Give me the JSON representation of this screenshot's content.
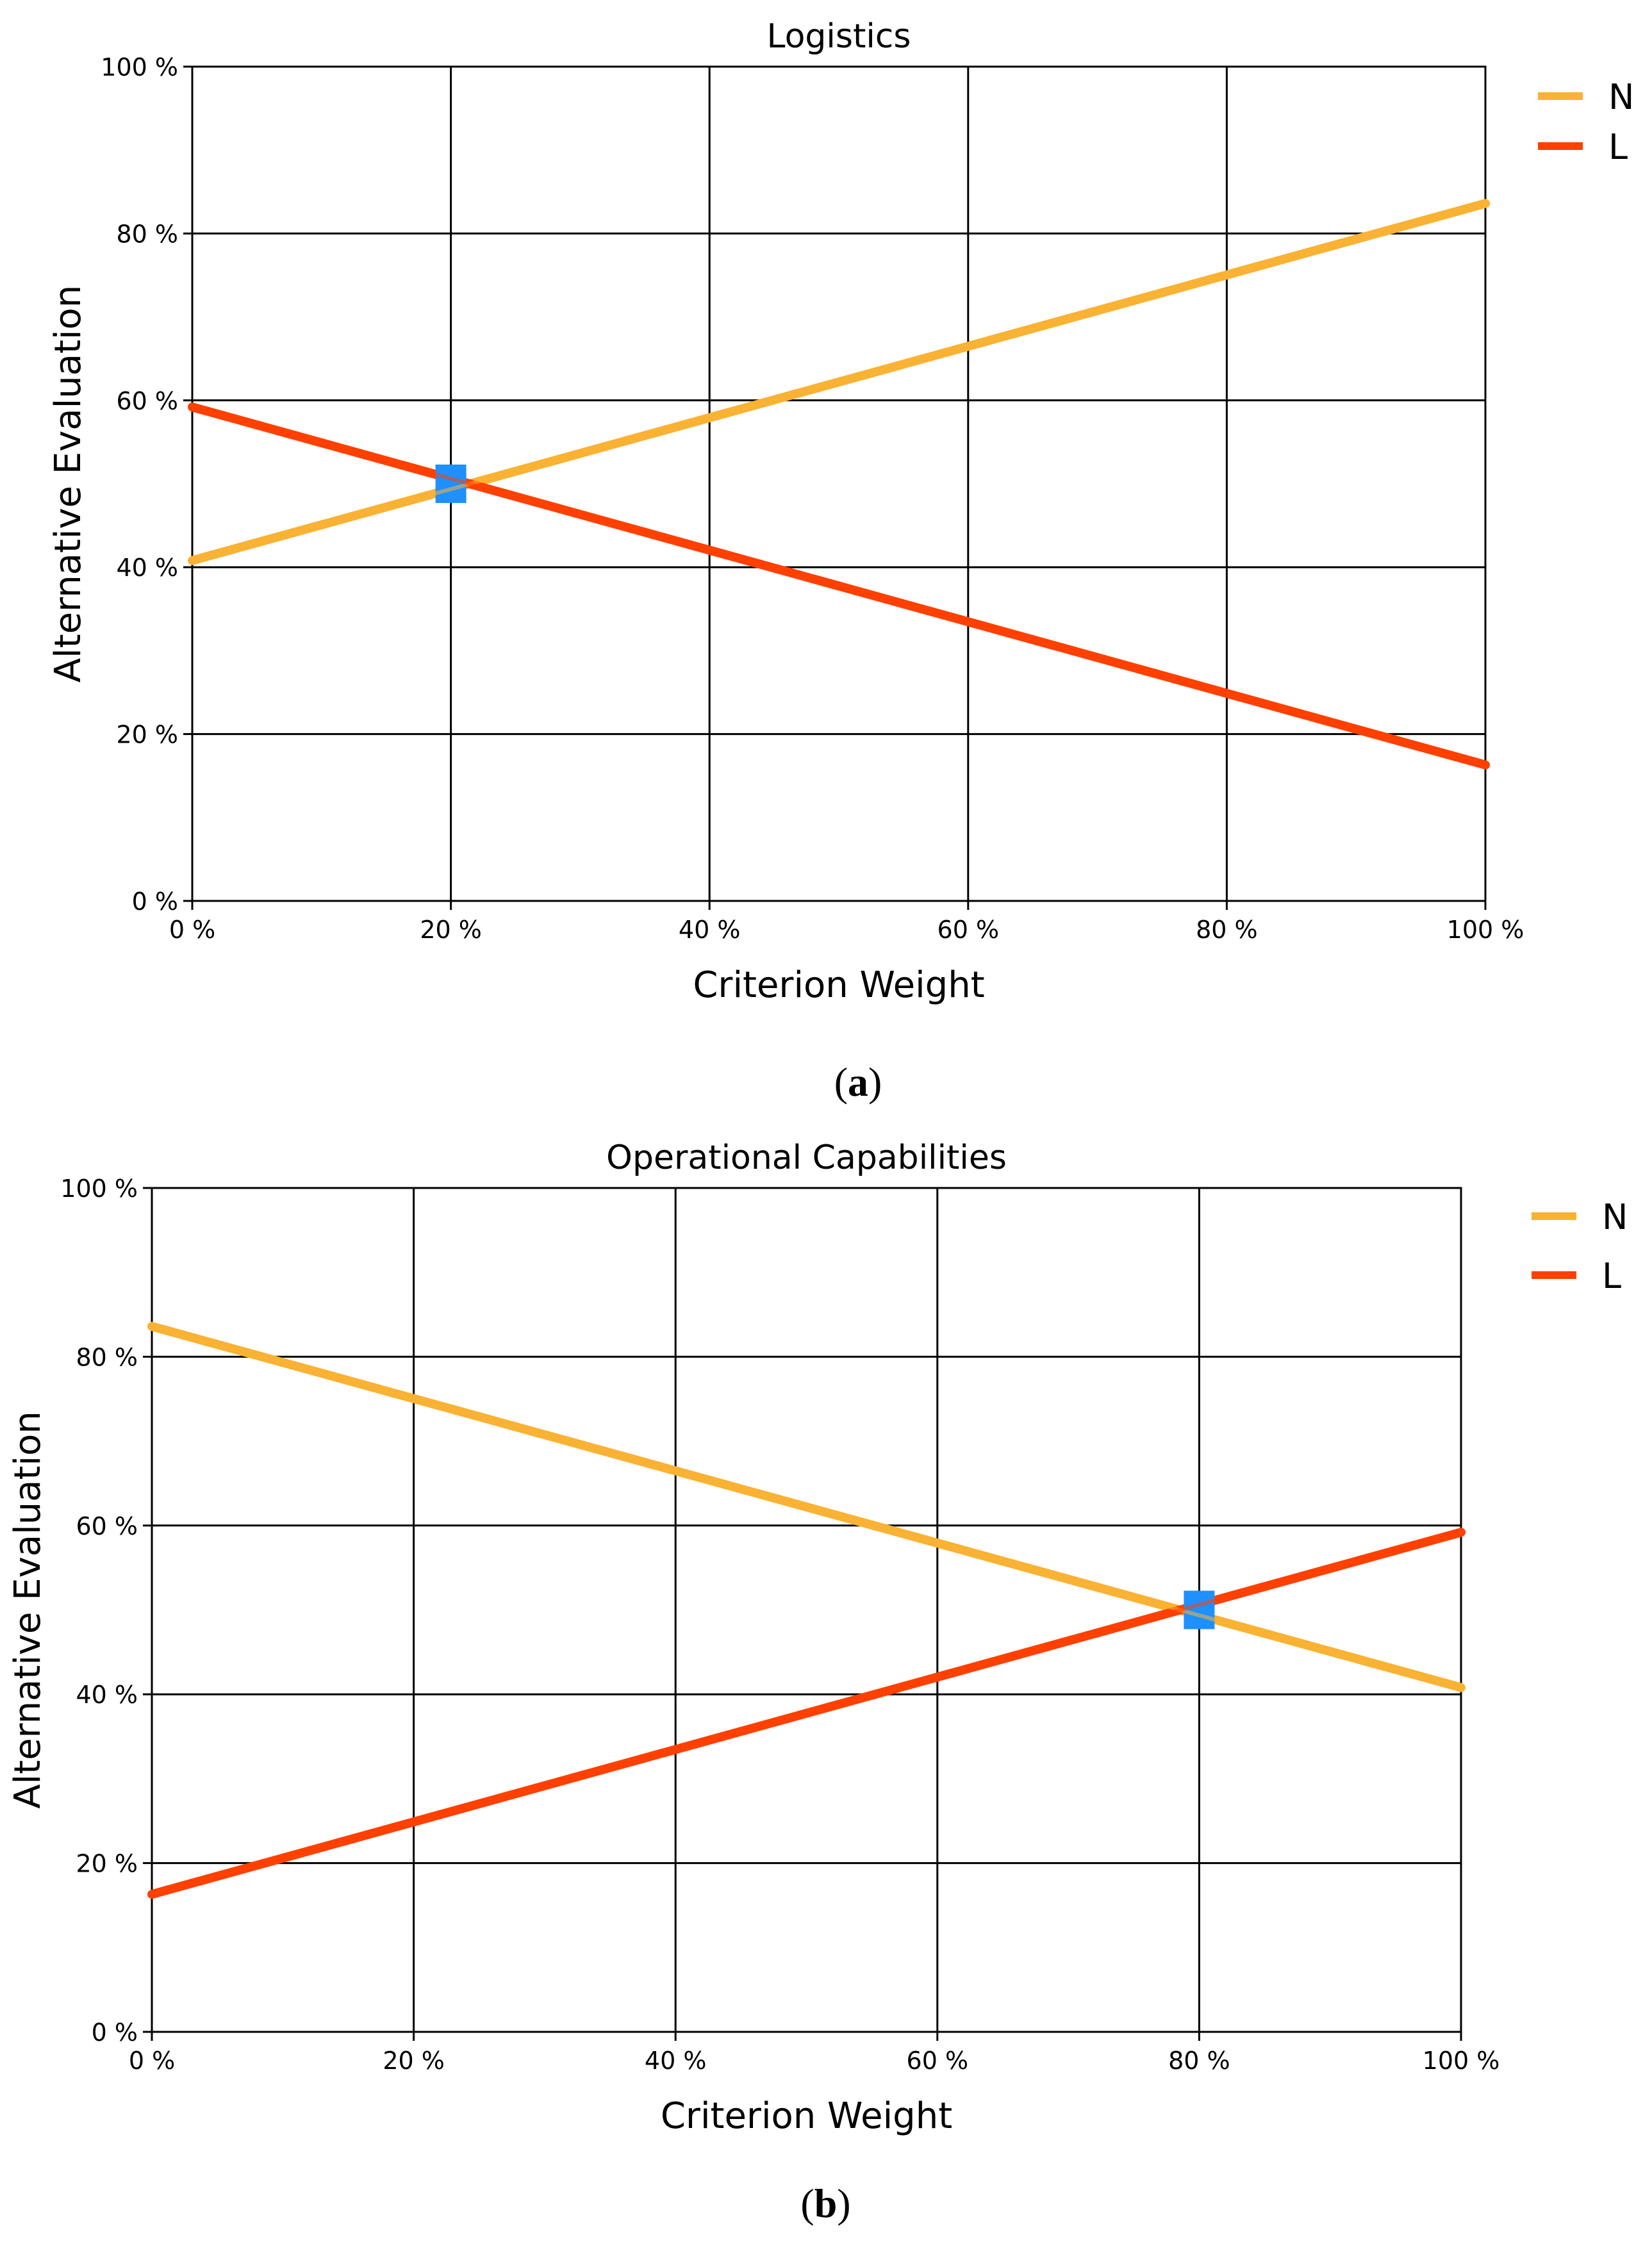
{
  "chart_data": [
    {
      "type": "line",
      "title": "Logistics",
      "xlabel": "Criterion Weight",
      "ylabel": "Alternative Evaluation",
      "xlim": [
        0,
        100
      ],
      "ylim": [
        0,
        100
      ],
      "x_ticks": [
        "0 %",
        "20 %",
        "40 %",
        "60 %",
        "80 %",
        "100 %"
      ],
      "y_ticks": [
        "0 %",
        "20 %",
        "40 %",
        "60 %",
        "80 %",
        "100 %"
      ],
      "grid": true,
      "legend_position": "top-right outside",
      "series": [
        {
          "name": "N",
          "color": "#F9B233",
          "x": [
            0,
            100
          ],
          "values": [
            40.8,
            83.6
          ]
        },
        {
          "name": "L",
          "color": "#FF4000",
          "x": [
            0,
            100
          ],
          "values": [
            59.2,
            16.3
          ]
        }
      ],
      "marker": {
        "x": 20,
        "y": 50,
        "color": "#1E90FF",
        "shape": "square"
      },
      "caption_open": "(",
      "caption_letter": "a",
      "caption_close": ")"
    },
    {
      "type": "line",
      "title": "Operational Capabilities",
      "xlabel": "Criterion Weight",
      "ylabel": "Alternative Evaluation",
      "xlim": [
        0,
        100
      ],
      "ylim": [
        0,
        100
      ],
      "x_ticks": [
        "0 %",
        "20 %",
        "40 %",
        "60 %",
        "80 %",
        "100 %"
      ],
      "y_ticks": [
        "0 %",
        "20 %",
        "40 %",
        "60 %",
        "80 %",
        "100 %"
      ],
      "grid": true,
      "legend_position": "top-right outside",
      "series": [
        {
          "name": "N",
          "color": "#F9B233",
          "x": [
            0,
            100
          ],
          "values": [
            83.6,
            40.8
          ]
        },
        {
          "name": "L",
          "color": "#FF4000",
          "x": [
            0,
            100
          ],
          "values": [
            16.3,
            59.2
          ]
        }
      ],
      "marker": {
        "x": 80,
        "y": 50,
        "color": "#1E90FF",
        "shape": "square"
      },
      "caption_open": "(",
      "caption_letter": "b",
      "caption_close": ")"
    }
  ]
}
